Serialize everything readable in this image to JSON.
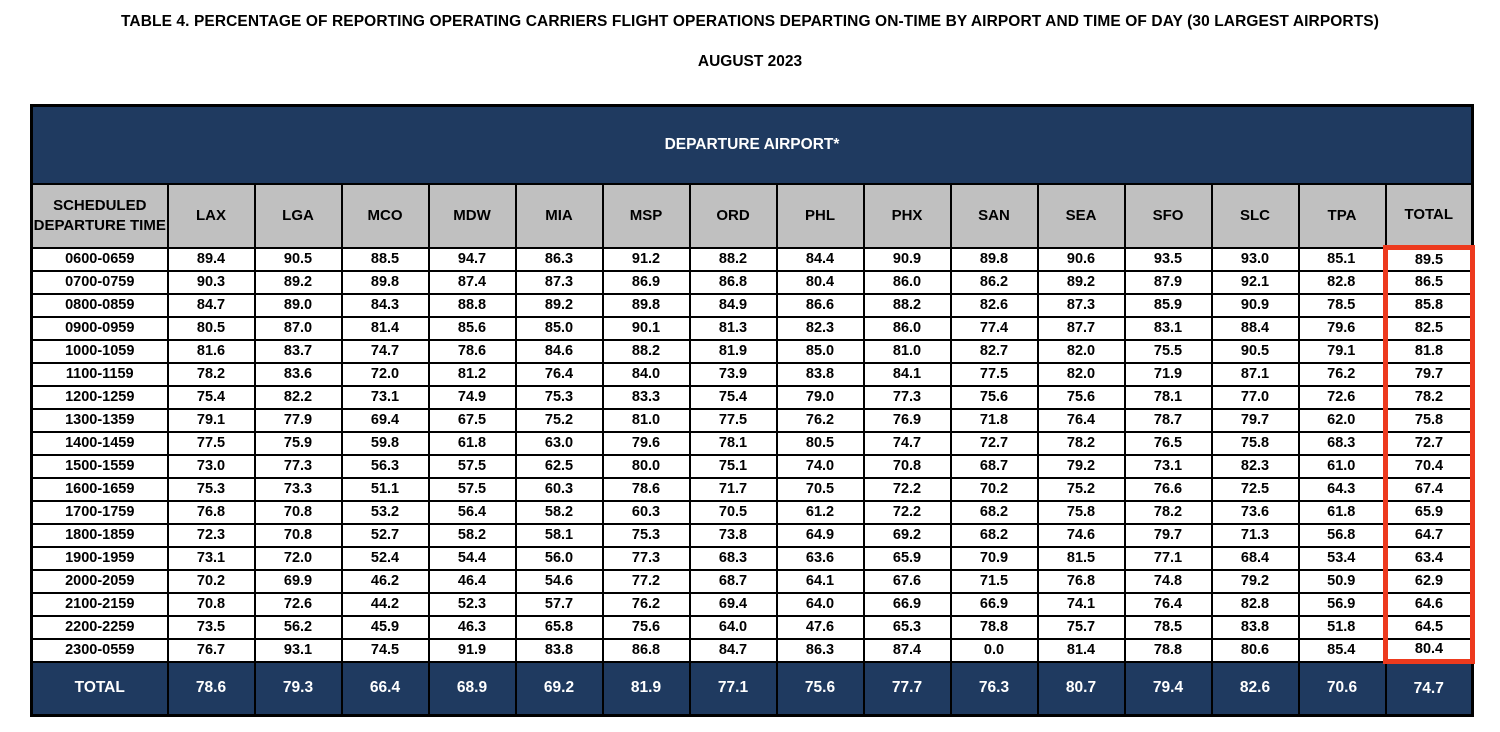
{
  "page": {
    "title": "TABLE 4. PERCENTAGE OF REPORTING OPERATING CARRIERS FLIGHT OPERATIONS DEPARTING ON-TIME BY AIRPORT AND TIME OF DAY (30 LARGEST AIRPORTS)",
    "subtitle": "AUGUST 2023"
  },
  "colors": {
    "navy": "#1f3a60",
    "gray": "#c0c0c0",
    "red": "#ed3a1e"
  },
  "table": {
    "banner": "DEPARTURE AIRPORT*",
    "row_header_label": "SCHEDULED DEPARTURE TIME",
    "columns": [
      "LAX",
      "LGA",
      "MCO",
      "MDW",
      "MIA",
      "MSP",
      "ORD",
      "PHL",
      "PHX",
      "SAN",
      "SEA",
      "SFO",
      "SLC",
      "TPA",
      "TOTAL"
    ],
    "rows": [
      {
        "time": "0600-0659",
        "values": [
          "89.4",
          "90.5",
          "88.5",
          "94.7",
          "86.3",
          "91.2",
          "88.2",
          "84.4",
          "90.9",
          "89.8",
          "90.6",
          "93.5",
          "93.0",
          "85.1",
          "89.5"
        ]
      },
      {
        "time": "0700-0759",
        "values": [
          "90.3",
          "89.2",
          "89.8",
          "87.4",
          "87.3",
          "86.9",
          "86.8",
          "80.4",
          "86.0",
          "86.2",
          "89.2",
          "87.9",
          "92.1",
          "82.8",
          "86.5"
        ]
      },
      {
        "time": "0800-0859",
        "values": [
          "84.7",
          "89.0",
          "84.3",
          "88.8",
          "89.2",
          "89.8",
          "84.9",
          "86.6",
          "88.2",
          "82.6",
          "87.3",
          "85.9",
          "90.9",
          "78.5",
          "85.8"
        ]
      },
      {
        "time": "0900-0959",
        "values": [
          "80.5",
          "87.0",
          "81.4",
          "85.6",
          "85.0",
          "90.1",
          "81.3",
          "82.3",
          "86.0",
          "77.4",
          "87.7",
          "83.1",
          "88.4",
          "79.6",
          "82.5"
        ]
      },
      {
        "time": "1000-1059",
        "values": [
          "81.6",
          "83.7",
          "74.7",
          "78.6",
          "84.6",
          "88.2",
          "81.9",
          "85.0",
          "81.0",
          "82.7",
          "82.0",
          "75.5",
          "90.5",
          "79.1",
          "81.8"
        ]
      },
      {
        "time": "1100-1159",
        "values": [
          "78.2",
          "83.6",
          "72.0",
          "81.2",
          "76.4",
          "84.0",
          "73.9",
          "83.8",
          "84.1",
          "77.5",
          "82.0",
          "71.9",
          "87.1",
          "76.2",
          "79.7"
        ]
      },
      {
        "time": "1200-1259",
        "values": [
          "75.4",
          "82.2",
          "73.1",
          "74.9",
          "75.3",
          "83.3",
          "75.4",
          "79.0",
          "77.3",
          "75.6",
          "75.6",
          "78.1",
          "77.0",
          "72.6",
          "78.2"
        ]
      },
      {
        "time": "1300-1359",
        "values": [
          "79.1",
          "77.9",
          "69.4",
          "67.5",
          "75.2",
          "81.0",
          "77.5",
          "76.2",
          "76.9",
          "71.8",
          "76.4",
          "78.7",
          "79.7",
          "62.0",
          "75.8"
        ]
      },
      {
        "time": "1400-1459",
        "values": [
          "77.5",
          "75.9",
          "59.8",
          "61.8",
          "63.0",
          "79.6",
          "78.1",
          "80.5",
          "74.7",
          "72.7",
          "78.2",
          "76.5",
          "75.8",
          "68.3",
          "72.7"
        ]
      },
      {
        "time": "1500-1559",
        "values": [
          "73.0",
          "77.3",
          "56.3",
          "57.5",
          "62.5",
          "80.0",
          "75.1",
          "74.0",
          "70.8",
          "68.7",
          "79.2",
          "73.1",
          "82.3",
          "61.0",
          "70.4"
        ]
      },
      {
        "time": "1600-1659",
        "values": [
          "75.3",
          "73.3",
          "51.1",
          "57.5",
          "60.3",
          "78.6",
          "71.7",
          "70.5",
          "72.2",
          "70.2",
          "75.2",
          "76.6",
          "72.5",
          "64.3",
          "67.4"
        ]
      },
      {
        "time": "1700-1759",
        "values": [
          "76.8",
          "70.8",
          "53.2",
          "56.4",
          "58.2",
          "60.3",
          "70.5",
          "61.2",
          "72.2",
          "68.2",
          "75.8",
          "78.2",
          "73.6",
          "61.8",
          "65.9"
        ]
      },
      {
        "time": "1800-1859",
        "values": [
          "72.3",
          "70.8",
          "52.7",
          "58.2",
          "58.1",
          "75.3",
          "73.8",
          "64.9",
          "69.2",
          "68.2",
          "74.6",
          "79.7",
          "71.3",
          "56.8",
          "64.7"
        ]
      },
      {
        "time": "1900-1959",
        "values": [
          "73.1",
          "72.0",
          "52.4",
          "54.4",
          "56.0",
          "77.3",
          "68.3",
          "63.6",
          "65.9",
          "70.9",
          "81.5",
          "77.1",
          "68.4",
          "53.4",
          "63.4"
        ]
      },
      {
        "time": "2000-2059",
        "values": [
          "70.2",
          "69.9",
          "46.2",
          "46.4",
          "54.6",
          "77.2",
          "68.7",
          "64.1",
          "67.6",
          "71.5",
          "76.8",
          "74.8",
          "79.2",
          "50.9",
          "62.9"
        ]
      },
      {
        "time": "2100-2159",
        "values": [
          "70.8",
          "72.6",
          "44.2",
          "52.3",
          "57.7",
          "76.2",
          "69.4",
          "64.0",
          "66.9",
          "66.9",
          "74.1",
          "76.4",
          "82.8",
          "56.9",
          "64.6"
        ]
      },
      {
        "time": "2200-2259",
        "values": [
          "73.5",
          "56.2",
          "45.9",
          "46.3",
          "65.8",
          "75.6",
          "64.0",
          "47.6",
          "65.3",
          "78.8",
          "75.7",
          "78.5",
          "83.8",
          "51.8",
          "64.5"
        ]
      },
      {
        "time": "2300-0559",
        "values": [
          "76.7",
          "93.1",
          "74.5",
          "91.9",
          "83.8",
          "86.8",
          "84.7",
          "86.3",
          "87.4",
          "0.0",
          "81.4",
          "78.8",
          "80.6",
          "85.4",
          "80.4"
        ]
      }
    ],
    "total_row": {
      "label": "TOTAL",
      "values": [
        "78.6",
        "79.3",
        "66.4",
        "68.9",
        "69.2",
        "81.9",
        "77.1",
        "75.6",
        "77.7",
        "76.3",
        "80.7",
        "79.4",
        "82.6",
        "70.6",
        "74.7"
      ]
    }
  }
}
